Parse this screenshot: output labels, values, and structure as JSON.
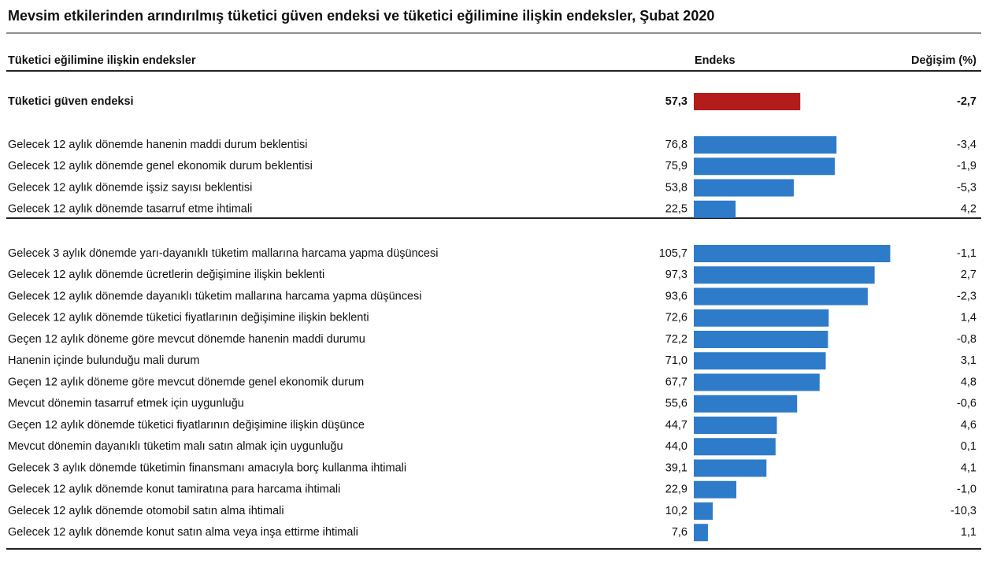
{
  "chart_data": {
    "type": "bar",
    "title": "Mevsim etkilerinden arındırılmış tüketici güven endeksi ve tüketici eğilimine ilişkin endeksler, Şubat 2020",
    "headers": [
      "Tüketici eğilimine ilişkin endeksler",
      "Endeks",
      "Değişim (%)"
    ],
    "groups": [
      {
        "color": "#b41c1c",
        "categories": [
          "Tüketici güven endeksi"
        ],
        "values": [
          57.3
        ],
        "value_labels": [
          "57,3"
        ],
        "changes": [
          "-2,7"
        ]
      },
      {
        "color": "#2e7bc9",
        "categories": [
          "Gelecek 12 aylık dönemde hanenin maddi durum beklentisi",
          "Gelecek 12 aylık dönemde genel ekonomik durum beklentisi",
          "Gelecek 12 aylık dönemde işsiz sayısı beklentisi",
          "Gelecek 12 aylık dönemde tasarruf etme ihtimali"
        ],
        "values": [
          76.8,
          75.9,
          53.8,
          22.5
        ],
        "value_labels": [
          "76,8",
          "75,9",
          "53,8",
          "22,5"
        ],
        "changes": [
          "-3,4",
          "-1,9",
          "-5,3",
          "4,2"
        ]
      },
      {
        "color": "#2e7bc9",
        "categories": [
          "Gelecek 3 aylık dönemde yarı-dayanıklı tüketim mallarına harcama yapma düşüncesi",
          "Gelecek 12 aylık dönemde ücretlerin değişimine ilişkin beklenti",
          "Gelecek 12 aylık dönemde  dayanıklı tüketim mallarına harcama yapma düşüncesi",
          "Gelecek 12 aylık dönemde tüketici fiyatlarının değişimine ilişkin beklenti",
          "Geçen 12 aylık döneme göre mevcut dönemde hanenin maddi durumu",
          "Hanenin içinde bulunduğu mali durum",
          "Geçen 12 aylık döneme göre mevcut dönemde genel ekonomik durum",
          "Mevcut dönemin tasarruf etmek için uygunluğu",
          "Geçen 12 aylık dönemde tüketici fiyatlarının değişimine ilişkin düşünce",
          "Mevcut dönemin dayanıklı tüketim malı satın almak için uygunluğu",
          "Gelecek 3 aylık dönemde tüketimin finansmanı amacıyla borç kullanma ihtimali",
          "Gelecek 12 aylık dönemde konut tamiratına para harcama ihtimali",
          "Gelecek 12 aylık dönemde otomobil satın alma ihtimali",
          "Gelecek 12 aylık dönemde konut satın alma veya inşa ettirme ihtimali"
        ],
        "values": [
          105.7,
          97.3,
          93.6,
          72.6,
          72.2,
          71.0,
          67.7,
          55.6,
          44.7,
          44.0,
          39.1,
          22.9,
          10.2,
          7.6
        ],
        "value_labels": [
          "105,7",
          "97,3",
          "93,6",
          "72,6",
          "72,2",
          "71,0",
          "67,7",
          "55,6",
          "44,7",
          "44,0",
          "39,1",
          "22,9",
          "10,2",
          "7,6"
        ],
        "changes": [
          "-1,1",
          "2,7",
          "-2,3",
          "1,4",
          "-0,8",
          "3,1",
          "4,8",
          "-0,6",
          "4,6",
          "0,1",
          "4,1",
          "-1,0",
          "-10,3",
          "1,1"
        ]
      }
    ]
  }
}
